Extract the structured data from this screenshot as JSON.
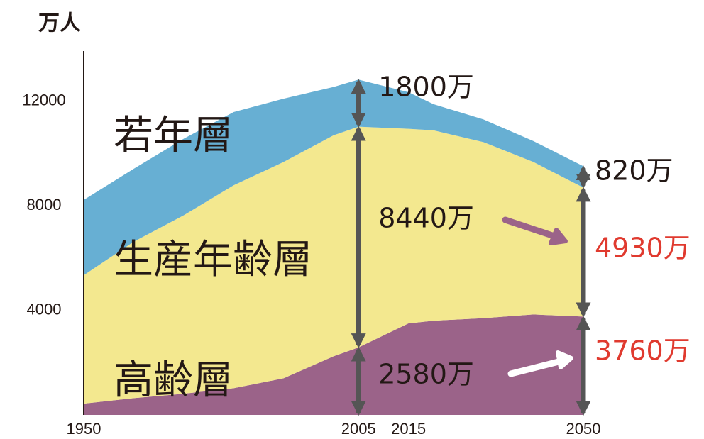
{
  "chart_data": {
    "type": "area",
    "stacked": true,
    "y_label": "万人",
    "x": [
      1950,
      1960,
      1970,
      1980,
      1990,
      2000,
      2005,
      2015,
      2020,
      2030,
      2040,
      2050
    ],
    "series": [
      {
        "name": "高齢層",
        "color": "#9b6389",
        "values": [
          430,
          640,
          810,
          1020,
          1400,
          2240,
          2580,
          3500,
          3600,
          3700,
          3840,
          3760
        ]
      },
      {
        "name": "生産年齢層",
        "color": "#f3e88f",
        "values": [
          4910,
          5980,
          6820,
          7760,
          8270,
          8450,
          8440,
          7440,
          7280,
          6730,
          5830,
          4930
        ]
      },
      {
        "name": "若年層",
        "color": "#67afd3",
        "values": [
          2880,
          2790,
          2930,
          2800,
          2420,
          1850,
          1800,
          1400,
          1000,
          870,
          800,
          820
        ]
      }
    ],
    "annotations": [
      {
        "text": "1800万",
        "color": "#231815"
      },
      {
        "text": "8440万",
        "color": "#231815"
      },
      {
        "text": "2580万",
        "color": "#231815"
      },
      {
        "text": "820万",
        "color": "#231815"
      },
      {
        "text": "4930万",
        "color": "#e03a2f"
      },
      {
        "text": "3760万",
        "color": "#e03a2f"
      }
    ],
    "xlim": [
      1950,
      2050
    ],
    "xticks": [
      1950,
      2005,
      2015,
      2050
    ],
    "ylim": [
      0,
      12800
    ],
    "yticks": [
      4000,
      8000,
      12000
    ]
  }
}
